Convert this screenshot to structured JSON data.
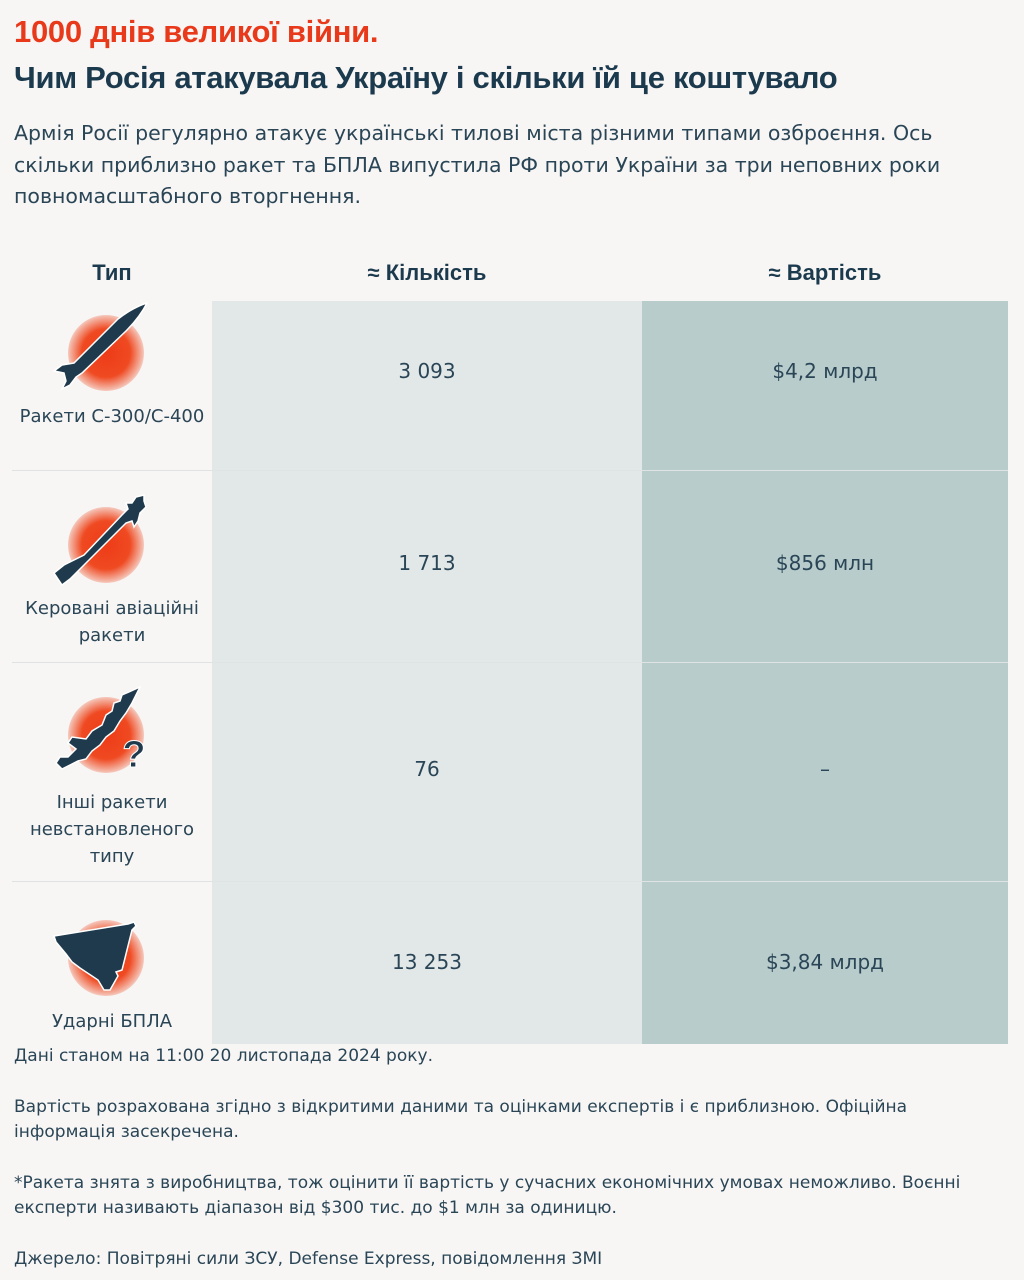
{
  "header": {
    "title_red": "1000 днів великої війни.",
    "title_main": "Чим Росія атакувала Україну і скільки їй це коштувало",
    "lead": "Армія Росії регулярно атакує українські тилові міста різними типами озброєння. Ось скільки приблизно ракет та БПЛА випустила РФ проти України за три неповних роки повномасштабного вторгнення."
  },
  "table": {
    "columns": [
      "Тип",
      "≈ Кількість",
      "≈ Вартість"
    ],
    "rows": [
      {
        "type": "Ракети С-300/С-400",
        "icon": "ballistic-missile-icon",
        "quantity": "3 093",
        "cost": "$4,2 млрд"
      },
      {
        "type": "Керовані авіаційні ракети",
        "icon": "guided-air-missile-icon",
        "quantity": "1 713",
        "cost": "$856 млн"
      },
      {
        "type": "Інші ракети невстановленого типу",
        "icon": "unknown-missile-icon",
        "quantity": "76",
        "cost": "–"
      },
      {
        "type": "Ударні БПЛА",
        "icon": "attack-drone-icon",
        "quantity": "13 253",
        "cost": "$3,84 млрд"
      }
    ]
  },
  "colors": {
    "accent_red": "#e8391a",
    "navy": "#1c3a4e",
    "quantity_column": "#e2e8e8",
    "cost_column": "#b8cccc",
    "background": "#f7f6f4"
  },
  "notes": {
    "date": "Дані станом на 11:00 20 листопада 2024 року.",
    "cost_note": "Вартість розрахована згідно з відкритими даними та оцінками експертів і є приблизною. Офіційна інформація засекречена.",
    "footnote": "*Ракета знята з виробництва, тож оцінити її вартість у сучасних економічних умовах неможливо. Воєнні експерти називають діапазон від $300 тис. до $1 млн за одиницю.",
    "source": "Джерело: Повітряні сили ЗСУ, Defense Express, повідомлення ЗМІ"
  }
}
